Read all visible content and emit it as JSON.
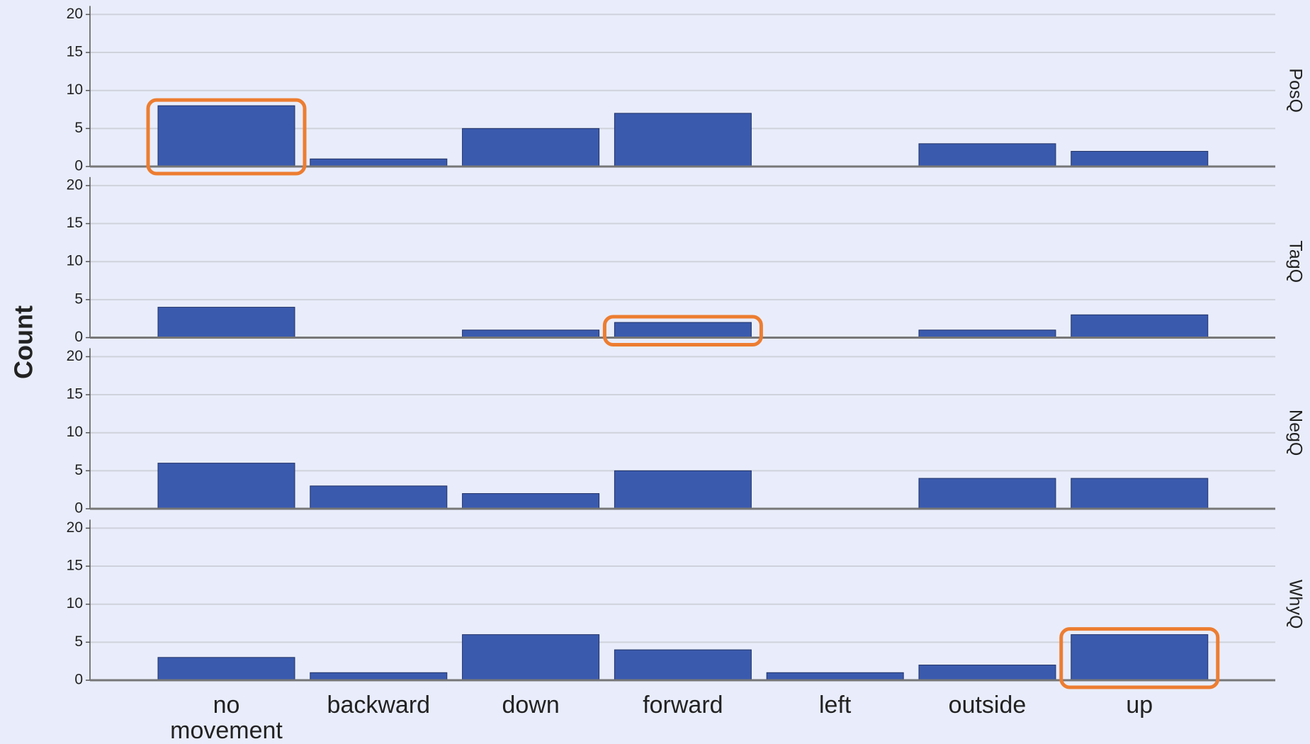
{
  "chart_data": {
    "type": "bar",
    "ylabel": "Count",
    "color": "#3a5aae",
    "highlight_color": "#ed7d31",
    "grid": true,
    "categories": [
      "no movement",
      "backward",
      "down",
      "forward",
      "left",
      "outside",
      "up"
    ],
    "ylim": [
      0,
      20
    ],
    "yticks": [
      0,
      5,
      10,
      15,
      20
    ],
    "panels": [
      {
        "name": "PosQ",
        "values": [
          8,
          1,
          5,
          7,
          0,
          3,
          2
        ],
        "highlight": 0
      },
      {
        "name": "TagQ",
        "values": [
          4,
          0,
          1,
          2,
          0,
          1,
          3
        ],
        "highlight": 3
      },
      {
        "name": "NegQ",
        "values": [
          6,
          3,
          2,
          5,
          0,
          4,
          4
        ]
      },
      {
        "name": "WhyQ",
        "values": [
          3,
          1,
          6,
          4,
          1,
          2,
          6
        ],
        "highlight": 6
      }
    ]
  }
}
